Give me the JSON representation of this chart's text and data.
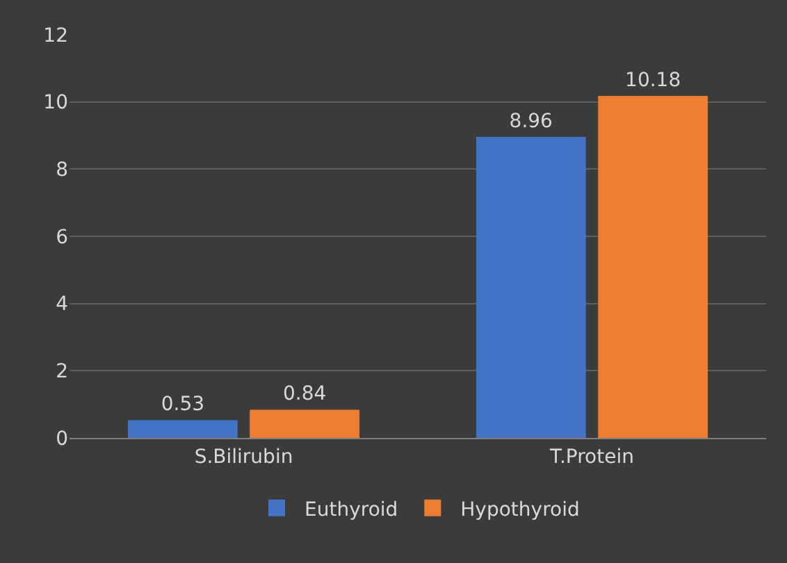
{
  "chart_data": {
    "type": "bar",
    "categories": [
      "S.Bilirubin",
      "T.Protein"
    ],
    "series": [
      {
        "name": "Euthyroid",
        "color": "#4472c4",
        "values": [
          0.53,
          8.96
        ]
      },
      {
        "name": "Hypothyroid",
        "color": "#ed7d31",
        "values": [
          0.84,
          10.18
        ]
      }
    ],
    "ylim": [
      0,
      12
    ],
    "yticks": [
      0,
      2,
      4,
      6,
      8,
      10,
      12
    ],
    "grid": "y",
    "legend": "bottom",
    "data_labels": true
  }
}
